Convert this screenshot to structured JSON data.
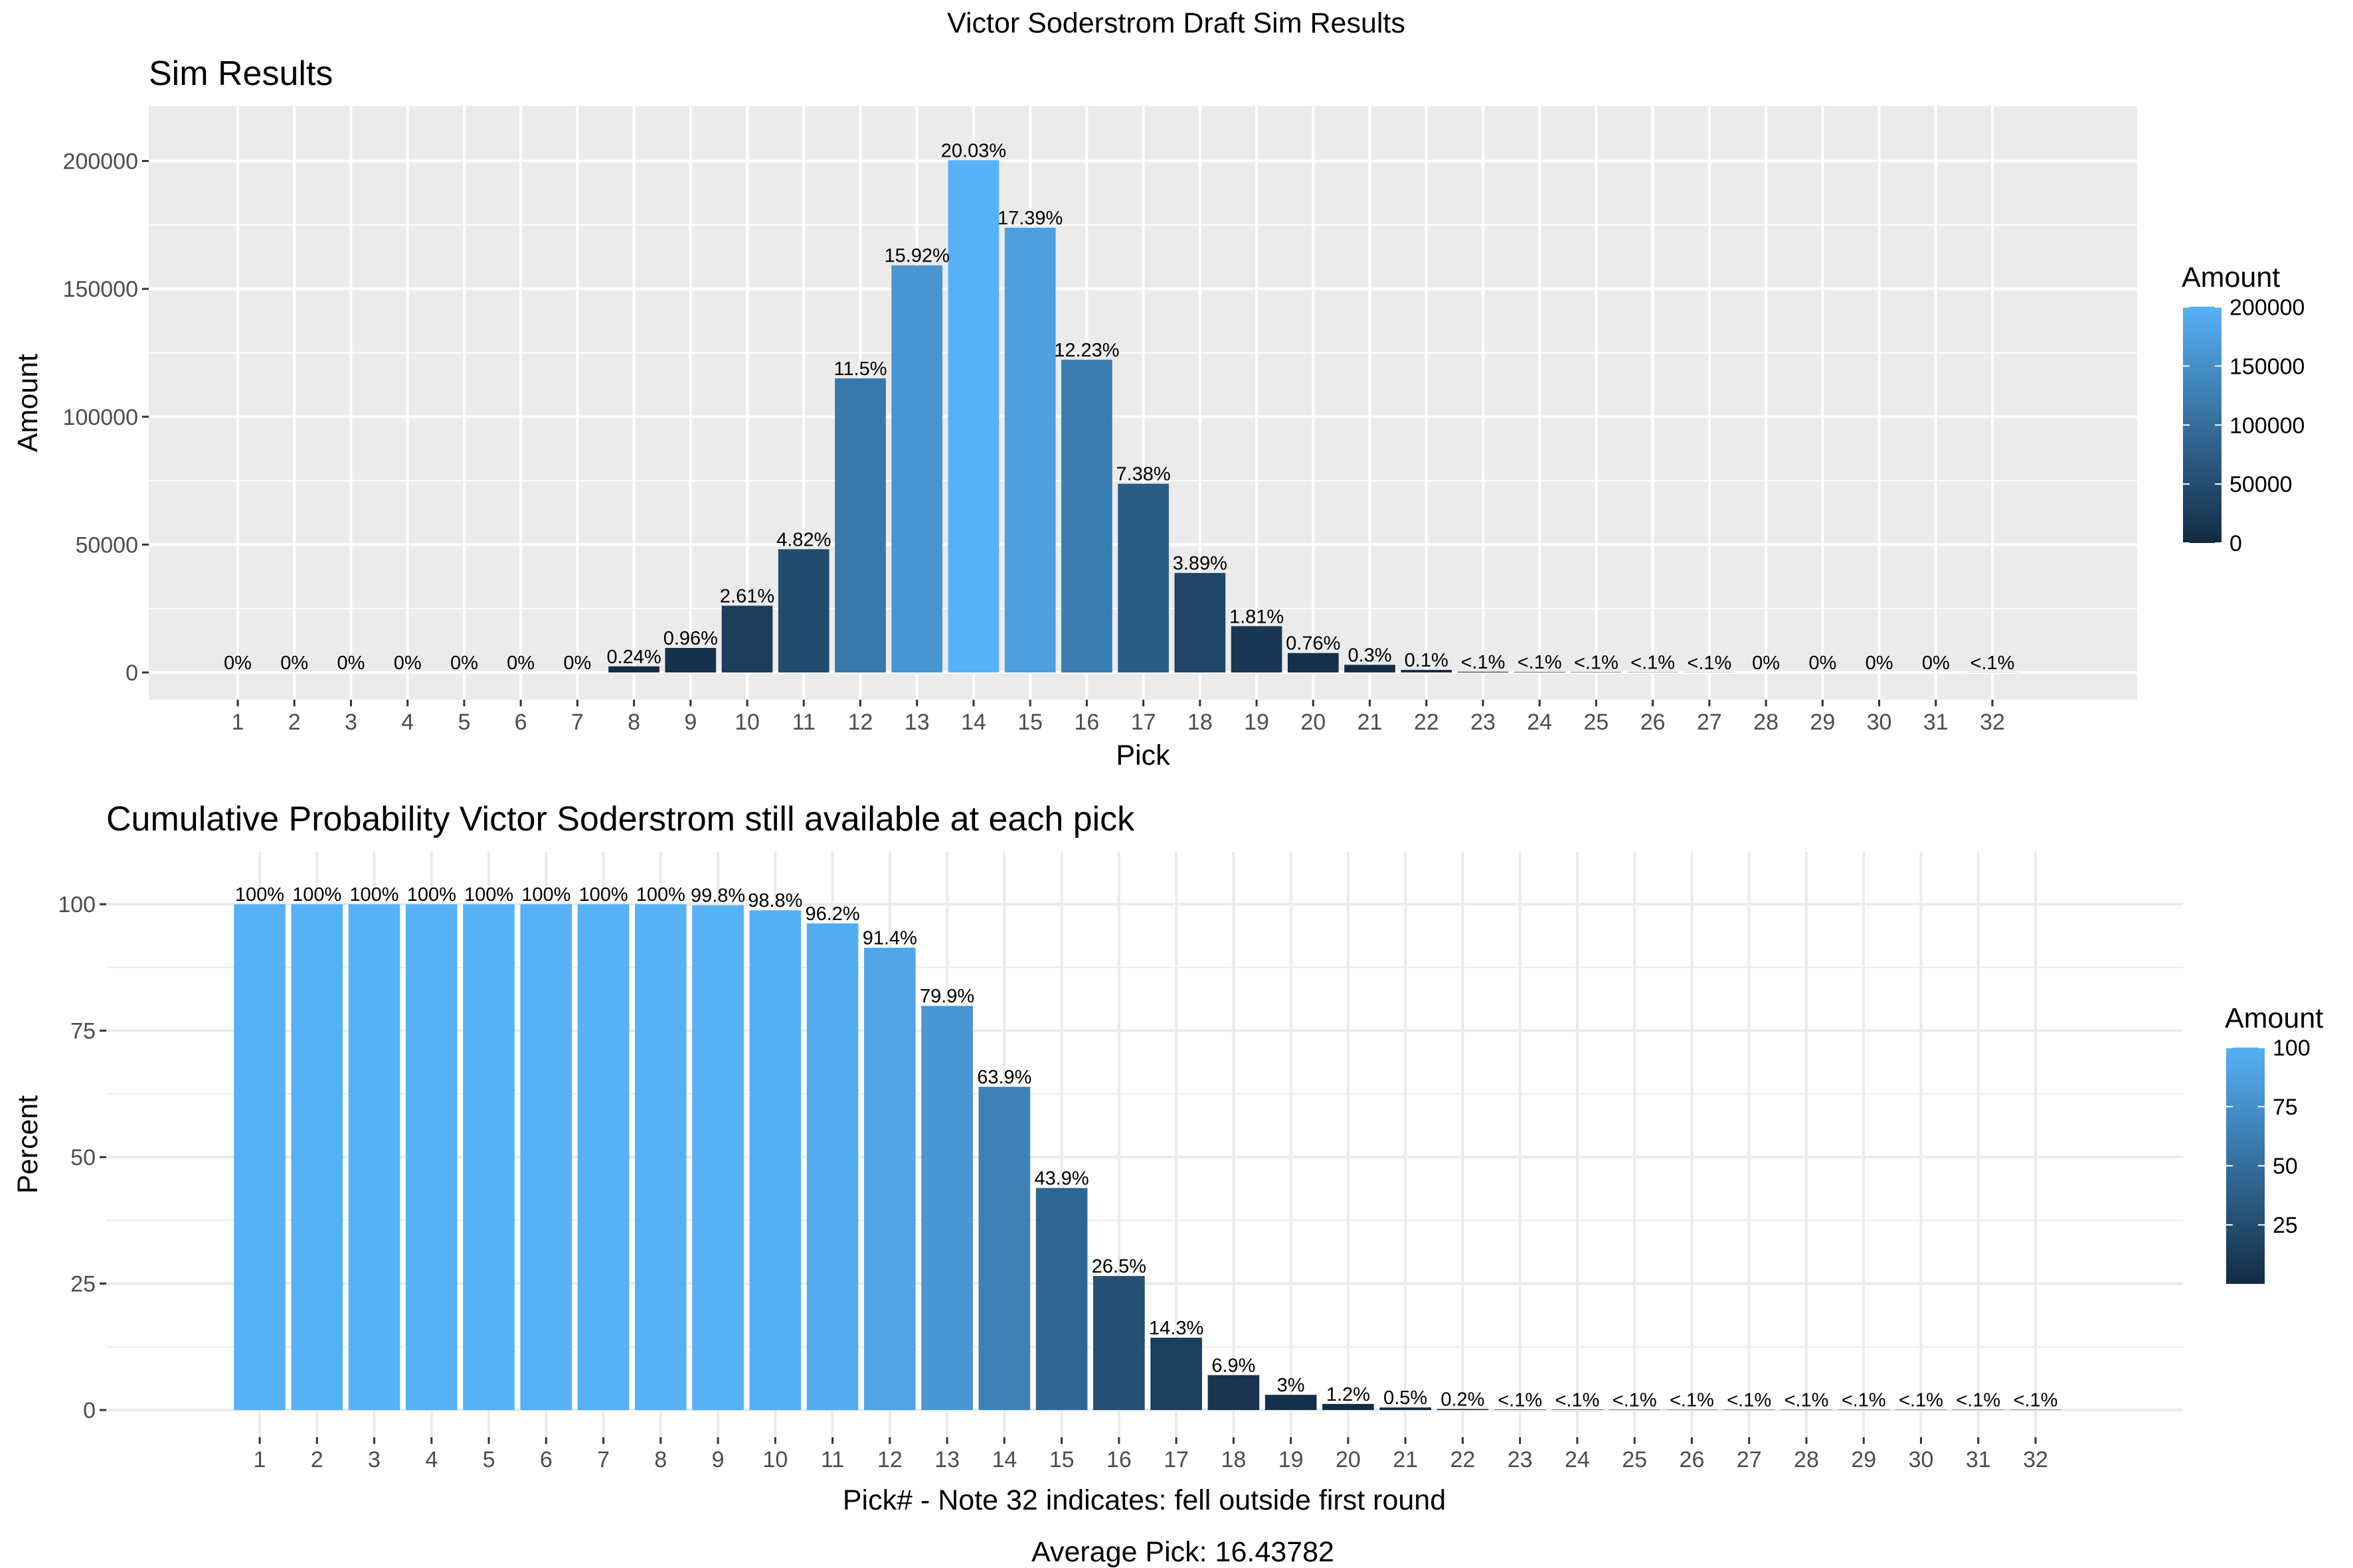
{
  "title": "Victor Soderstrom Draft Sim Results",
  "caption": "Average Pick: 16.43782",
  "colors": {
    "panel_bg_top": "#ebebeb",
    "panel_bg_bottom": "#ffffff",
    "grid_top": "#ffffff",
    "grid_bottom": "#ebebeb",
    "gradient_low": "#132b43",
    "gradient_high": "#56b1f7"
  },
  "chart_data": [
    {
      "type": "bar",
      "title": "Sim Results",
      "xlabel": "Pick",
      "ylabel": "Amount",
      "categories": [
        "1",
        "2",
        "3",
        "4",
        "5",
        "6",
        "7",
        "8",
        "9",
        "10",
        "11",
        "12",
        "13",
        "14",
        "15",
        "16",
        "17",
        "18",
        "19",
        "20",
        "21",
        "22",
        "23",
        "24",
        "25",
        "26",
        "27",
        "28",
        "29",
        "30",
        "31",
        "32"
      ],
      "values": [
        0,
        0,
        0,
        0,
        0,
        0,
        0,
        2400,
        9600,
        26100,
        48200,
        115000,
        159200,
        200300,
        173900,
        122300,
        73800,
        38900,
        18100,
        7600,
        3000,
        1000,
        300,
        200,
        150,
        100,
        60,
        0,
        0,
        0,
        0,
        50
      ],
      "labels": [
        "0%",
        "0%",
        "0%",
        "0%",
        "0%",
        "0%",
        "0%",
        "0.24%",
        "0.96%",
        "2.61%",
        "4.82%",
        "11.5%",
        "15.92%",
        "20.03%",
        "17.39%",
        "12.23%",
        "7.38%",
        "3.89%",
        "1.81%",
        "0.76%",
        "0.3%",
        "0.1%",
        "<.1%",
        "<.1%",
        "<.1%",
        "<.1%",
        "<.1%",
        "0%",
        "0%",
        "0%",
        "0%",
        "<.1%"
      ],
      "yticks": [
        0,
        50000,
        100000,
        150000,
        200000
      ],
      "ylim": [
        0,
        210000
      ],
      "legend": {
        "title": "Amount",
        "position": "right",
        "ticks": [
          0,
          50000,
          100000,
          150000,
          200000
        ],
        "range": [
          0,
          200300
        ]
      }
    },
    {
      "type": "bar",
      "title": "Cumulative Probability Victor Soderstrom still available at each pick",
      "xlabel": "Pick# - Note 32 indicates: fell outside first round",
      "ylabel": "Percent",
      "categories": [
        "1",
        "2",
        "3",
        "4",
        "5",
        "6",
        "7",
        "8",
        "9",
        "10",
        "11",
        "12",
        "13",
        "14",
        "15",
        "16",
        "17",
        "18",
        "19",
        "20",
        "21",
        "22",
        "23",
        "24",
        "25",
        "26",
        "27",
        "28",
        "29",
        "30",
        "31",
        "32"
      ],
      "values": [
        100,
        100,
        100,
        100,
        100,
        100,
        100,
        100,
        99.8,
        98.8,
        96.2,
        91.4,
        79.9,
        63.9,
        43.9,
        26.5,
        14.3,
        6.9,
        3,
        1.2,
        0.5,
        0.2,
        0.08,
        0.07,
        0.06,
        0.05,
        0.05,
        0.05,
        0.05,
        0.05,
        0.05,
        0.05
      ],
      "labels": [
        "100%",
        "100%",
        "100%",
        "100%",
        "100%",
        "100%",
        "100%",
        "100%",
        "99.8%",
        "98.8%",
        "96.2%",
        "91.4%",
        "79.9%",
        "63.9%",
        "43.9%",
        "26.5%",
        "14.3%",
        "6.9%",
        "3%",
        "1.2%",
        "0.5%",
        "0.2%",
        "<.1%",
        "<.1%",
        "<.1%",
        "<.1%",
        "<.1%",
        "<.1%",
        "<.1%",
        "<.1%",
        "<.1%",
        "<.1%"
      ],
      "yticks": [
        0,
        25,
        50,
        75,
        100
      ],
      "ylim": [
        0,
        105
      ],
      "legend": {
        "title": "Amount",
        "position": "right",
        "ticks": [
          25,
          50,
          75,
          100
        ],
        "range": [
          0.05,
          100
        ]
      }
    }
  ]
}
